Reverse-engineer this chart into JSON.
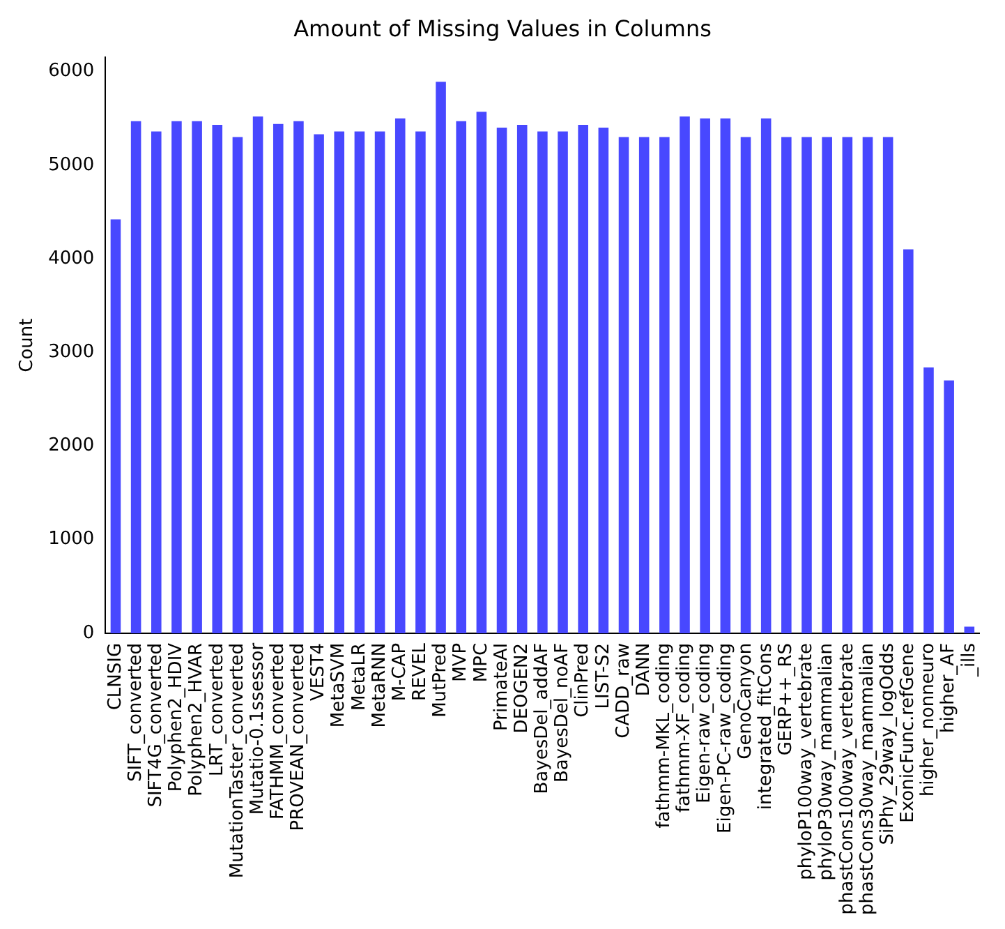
{
  "chart_data": {
    "type": "bar",
    "title": "Amount of Missing Values in Columns",
    "ylabel": "Count",
    "categories": [
      "CLNSIG",
      "SIFT_converted",
      "SIFT4G_converted",
      "Polyphen2_HDIV",
      "Polyphen2_HVAR",
      "LRT_converted",
      "MutationTaster_converted",
      "Mutatio-0.1ssessor",
      "FATHMM_converted",
      "PROVEAN_converted",
      "VEST4",
      "MetaSVM",
      "MetaLR",
      "MetaRNN",
      "M-CAP",
      "REVEL",
      "MutPred",
      "MVP",
      "MPC",
      "PrimateAI",
      "DEOGEN2",
      "BayesDel_addAF",
      "BayesDel_noAF",
      "ClinPred",
      "LIST-S2",
      "CADD_raw",
      "DANN",
      "fathmm-MKL_coding",
      "fathmm-XF_coding",
      "Eigen-raw_coding",
      "Eigen-PC-raw_coding",
      "GenoCanyon",
      "integrated_fitCons",
      "GERP++_RS",
      "phyloP100way_vertebrate",
      "phyloP30way_mammalian",
      "phastCons100way_vertebrate",
      "phastCons30way_mammalian",
      "SiPhy_29way_logOdds",
      "ExonicFunc.refGene",
      "higher_nonneuro",
      "higher_AF",
      "_ills"
    ],
    "values": [
      4420,
      5470,
      5360,
      5470,
      5470,
      5430,
      5300,
      5520,
      5440,
      5470,
      5330,
      5360,
      5360,
      5360,
      5500,
      5360,
      5890,
      5470,
      5570,
      5400,
      5430,
      5360,
      5360,
      5430,
      5400,
      5300,
      5300,
      5300,
      5520,
      5500,
      5500,
      5300,
      5500,
      5300,
      5300,
      5300,
      5300,
      5300,
      5300,
      4100,
      2840,
      2700,
      70
    ],
    "color": "#4848ff",
    "ylim": [
      0,
      6150
    ],
    "yticks": [
      0,
      1000,
      2000,
      3000,
      4000,
      5000,
      6000
    ],
    "grid": false,
    "legend": false
  }
}
